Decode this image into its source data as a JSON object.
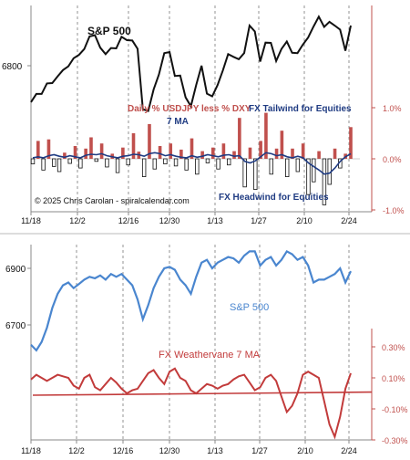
{
  "colors": {
    "black": "#111111",
    "red_bar": "#c0504d",
    "navy": "#1f3b82",
    "blue": "#4a86cf",
    "red_line": "#c23b3b",
    "axis_red": "#c0504d",
    "grid": "#666666"
  },
  "chart_data": [
    {
      "type": "bar",
      "title": "S&P 500",
      "annotations": {
        "bar_label": "Daily % USDJPY less % DXY",
        "ma_label": "7 MA",
        "tailwind": "FX Tailwind for Equities",
        "headwind": "FX Headwind for Equities",
        "copyright": "© 2025 Chris Carolan - spiralcalendar.com"
      },
      "x_tick_labels": [
        "11/18",
        "12/2",
        "12/16",
        "12/30",
        "1/13",
        "1/27",
        "2/10",
        "2/24"
      ],
      "left_axis": {
        "ticks": [
          6800
        ]
      },
      "right_axis": {
        "ticks": [
          "1.0%",
          "0.0%",
          "-1.0%"
        ],
        "values": [
          1.0,
          0.0,
          -1.0
        ],
        "range": [
          -1.1,
          2.9
        ]
      },
      "series": [
        {
          "name": "S&P 500",
          "kind": "line",
          "color": "#111111",
          "values": [
            5893,
            5917,
            5917,
            5948,
            5949,
            5969,
            5987,
            5998,
            6022,
            6032,
            6049,
            6086,
            6090,
            6053,
            6034,
            6052,
            6051,
            6085,
            6075,
            6074,
            6050,
            5872,
            5867,
            5930,
            5974,
            6037,
            6040,
            5970,
            5971,
            5907,
            5881,
            5943,
            6000,
            5918,
            5910,
            5943,
            5986,
            6034,
            6026,
            6019,
            6037,
            6118,
            6101,
            6012,
            6068,
            6067,
            6014,
            6049,
            6071,
            6038,
            6037,
            6062,
            6083,
            6115,
            6144,
            6114,
            6129,
            6118,
            6106,
            6044,
            6118
          ]
        },
        {
          "name": "Daily % USDJPY less % DXY",
          "kind": "bar",
          "color": "#c0504d",
          "values": [
            -0.1,
            0.35,
            -0.22,
            0.38,
            -0.15,
            -0.25,
            0.12,
            -0.09,
            0.25,
            -0.18,
            0.2,
            0.42,
            -0.05,
            0.3,
            -0.16,
            0.1,
            -0.27,
            0.22,
            -0.12,
            0.5,
            0.14,
            -0.35,
            0.68,
            -0.2,
            0.25,
            -0.1,
            0.3,
            -0.14,
            0.18,
            -0.22,
            0.4,
            -0.3,
            0.15,
            -0.08,
            0.22,
            -0.2,
            0.3,
            -0.12,
            0.15,
            0.8,
            -0.55,
            0.22,
            -0.6,
            0.35,
            0.9,
            -0.3,
            0.2,
            0.55,
            -0.35,
            0.2,
            -0.25,
            0.3,
            -0.7,
            -0.45,
            0.15,
            -0.9,
            -0.5,
            0.2,
            -0.18,
            0.1,
            0.62
          ]
        },
        {
          "name": "7 MA",
          "kind": "line",
          "color": "#1f3b82",
          "values": [
            0.02,
            0.04,
            0.02,
            0.06,
            0.08,
            0.05,
            0.03,
            0.06,
            0.04,
            0.02,
            0.07,
            0.09,
            0.08,
            0.1,
            0.06,
            0.04,
            0.02,
            0.05,
            0.06,
            0.09,
            0.08,
            0.05,
            0.1,
            0.12,
            0.1,
            0.06,
            0.08,
            0.05,
            0.03,
            0.02,
            0.06,
            0.03,
            0.05,
            0.08,
            0.06,
            0.04,
            0.07,
            0.08,
            0.05,
            0.06,
            -0.05,
            -0.08,
            -0.04,
            0.04,
            0.12,
            0.1,
            0.06,
            0.08,
            0.04,
            0.02,
            0.05,
            0.02,
            -0.08,
            -0.15,
            -0.22,
            -0.3,
            -0.28,
            -0.18,
            -0.05,
            0.04,
            0.1
          ]
        }
      ]
    },
    {
      "type": "line",
      "annotations": {
        "spx_label": "S&P 500",
        "fx_label": "FX Weathervane 7 MA"
      },
      "x_tick_labels": [
        "11/18",
        "12/2",
        "12/16",
        "12/30",
        "1/13",
        "1/27",
        "2/10",
        "2/24"
      ],
      "left_axis": {
        "ticks": [
          6900,
          6700
        ]
      },
      "right_axis": {
        "ticks": [
          "0.30%",
          "0.10%",
          "-0.10%",
          "-0.30%"
        ],
        "values": [
          0.3,
          0.1,
          -0.1,
          -0.3
        ],
        "range": [
          -0.3,
          0.85
        ]
      },
      "series": [
        {
          "name": "S&P 500",
          "kind": "line",
          "color": "#4a86cf",
          "values": [
            6630,
            6610,
            6640,
            6690,
            6760,
            6810,
            6840,
            6850,
            6830,
            6845,
            6860,
            6870,
            6865,
            6875,
            6860,
            6880,
            6870,
            6880,
            6860,
            6840,
            6790,
            6720,
            6770,
            6830,
            6870,
            6900,
            6905,
            6895,
            6860,
            6840,
            6810,
            6870,
            6920,
            6930,
            6900,
            6920,
            6930,
            6940,
            6935,
            6920,
            6945,
            6960,
            6960,
            6910,
            6930,
            6940,
            6910,
            6930,
            6960,
            6950,
            6930,
            6940,
            6910,
            6850,
            6860,
            6860,
            6870,
            6880,
            6900,
            6850,
            6890
          ]
        },
        {
          "name": "FX Weathervane 7 MA",
          "kind": "line",
          "color": "#c23b3b",
          "values": [
            0.09,
            0.12,
            0.1,
            0.08,
            0.1,
            0.12,
            0.11,
            0.1,
            0.05,
            0.03,
            0.1,
            0.12,
            0.04,
            0.02,
            0.06,
            0.1,
            0.07,
            0.03,
            0.0,
            0.02,
            0.03,
            0.08,
            0.13,
            0.15,
            0.1,
            0.06,
            0.14,
            0.16,
            0.1,
            0.08,
            0.02,
            0.0,
            0.03,
            0.06,
            0.05,
            0.03,
            0.05,
            0.06,
            0.09,
            0.11,
            0.12,
            0.07,
            0.02,
            0.04,
            0.1,
            0.12,
            0.08,
            -0.02,
            -0.12,
            -0.08,
            0.0,
            0.12,
            0.14,
            0.12,
            0.1,
            -0.05,
            -0.2,
            -0.28,
            -0.15,
            0.03,
            0.13
          ]
        },
        {
          "name": "trend",
          "kind": "line",
          "color": "#c23b3b",
          "values_start_end": [
            0.0,
            0.02
          ]
        }
      ]
    }
  ]
}
